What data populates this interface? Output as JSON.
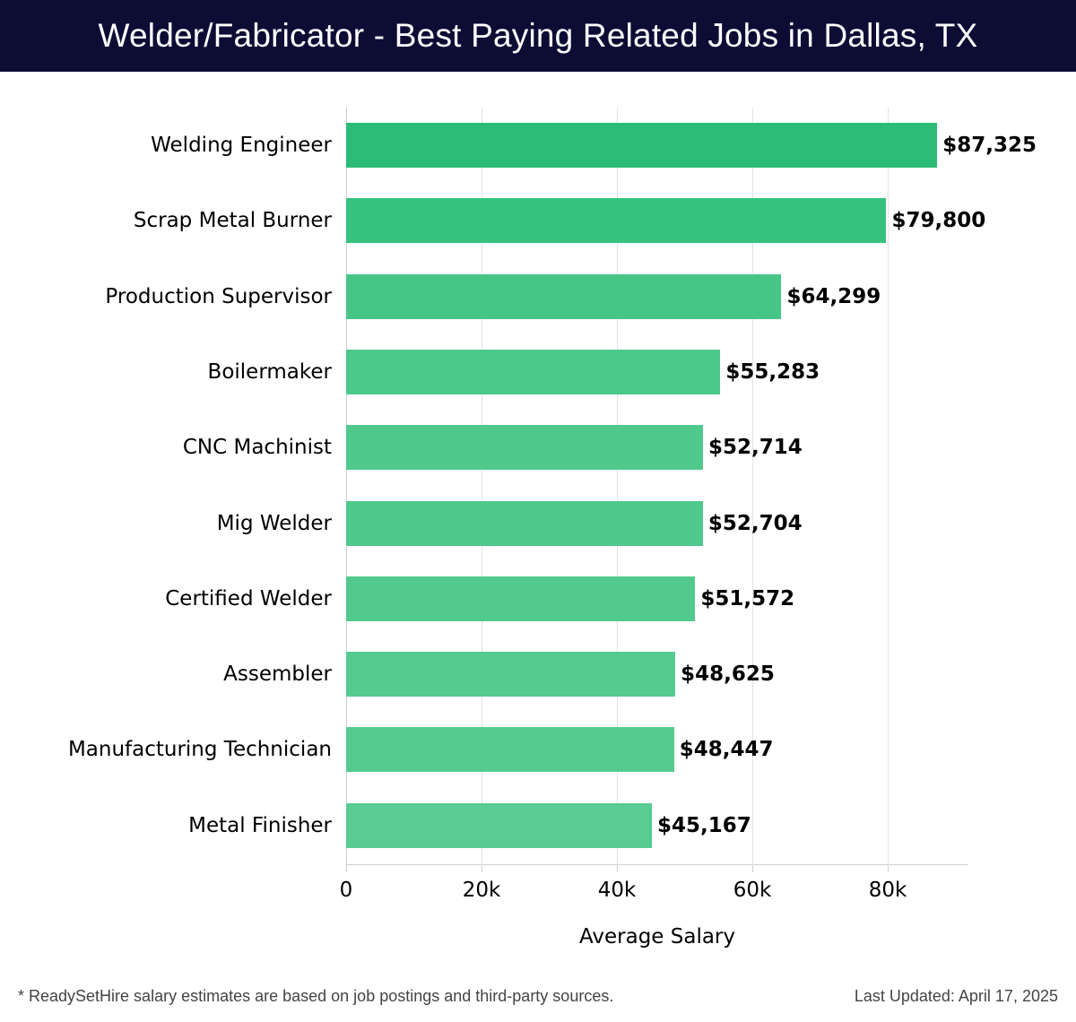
{
  "header": {
    "title": "Welder/Fabricator - Best Paying Related Jobs in Dallas, TX"
  },
  "chart_data": {
    "type": "bar",
    "orientation": "horizontal",
    "title": "Welder/Fabricator - Best Paying Related Jobs in Dallas, TX",
    "xlabel": "Average Salary",
    "ylabel": "",
    "categories": [
      "Welding Engineer",
      "Scrap Metal Burner",
      "Production Supervisor",
      "Boilermaker",
      "CNC Machinist",
      "Mig Welder",
      "Certified Welder",
      "Assembler",
      "Manufacturing Technician",
      "Metal Finisher"
    ],
    "values": [
      87325,
      79800,
      64299,
      55283,
      52714,
      52704,
      51572,
      48625,
      48447,
      45167
    ],
    "value_labels": [
      "$87,325",
      "$79,800",
      "$64,299",
      "$55,283",
      "$52,714",
      "$52,704",
      "$51,572",
      "$48,625",
      "$48,447",
      "$45,167"
    ],
    "bar_colors": [
      "#2bbd77",
      "#36c27f",
      "#45c687",
      "#4ac88a",
      "#4fc98c",
      "#4fc98c",
      "#52ca8e",
      "#55cb90",
      "#55cb90",
      "#58cc92"
    ],
    "xlim": [
      0,
      92000
    ],
    "xticks": [
      0,
      20000,
      40000,
      60000,
      80000
    ],
    "xtick_labels": [
      "0",
      "20k",
      "40k",
      "60k",
      "80k"
    ],
    "grid": true,
    "legend": null
  },
  "footer": {
    "note": "* ReadySetHire salary estimates are based on job postings and third-party sources.",
    "updated": "Last Updated: April 17, 2025"
  }
}
